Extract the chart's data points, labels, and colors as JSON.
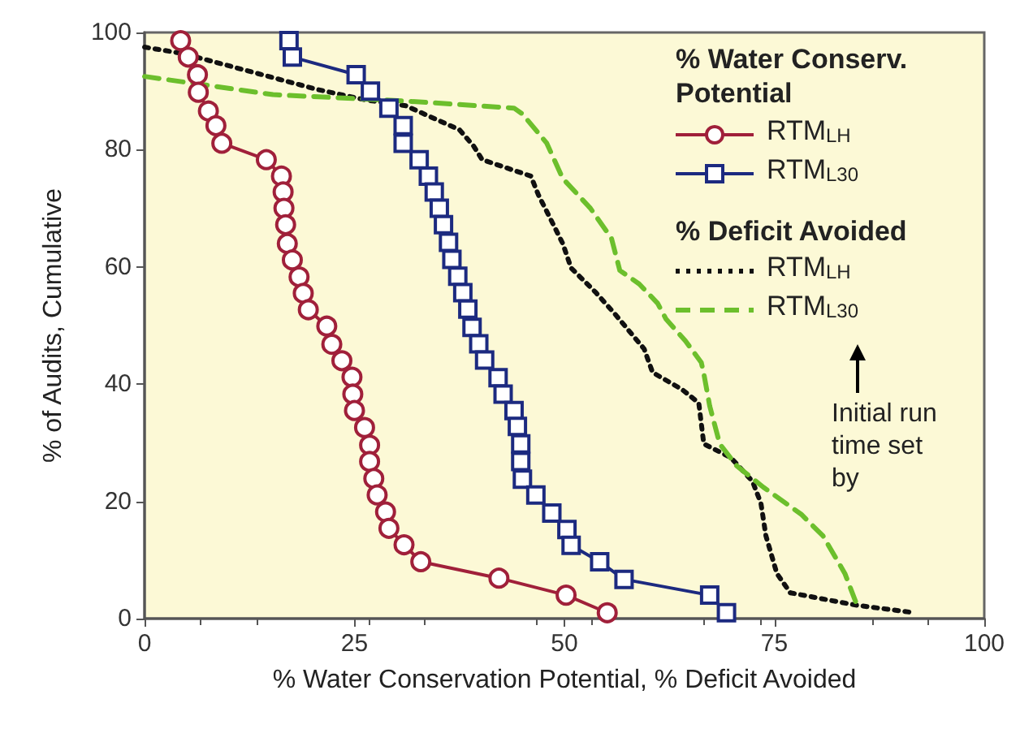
{
  "chart_data": {
    "type": "line",
    "xlabel": "% Water Conservation Potential, % Deficit Avoided",
    "ylabel": "% of Audits, Cumulative",
    "annotations": [
      "% Water Conserv. Potential",
      "% Deficit Avoided",
      "Initial run time set by"
    ],
    "xlim": [
      0,
      100
    ],
    "xticks": [
      0,
      25,
      50,
      75,
      100
    ],
    "ylim": [
      0,
      100
    ],
    "yticks": [
      0,
      20,
      40,
      60,
      80,
      100
    ],
    "grid": false,
    "legend": "top right",
    "series": [
      {
        "name": "RTM$_{LH}$",
        "color": "#a0203a",
        "marker": "circle",
        "line_style": "solid",
        "x": [
          4.3,
          5.2,
          6.3,
          6.4,
          7.6,
          8.5,
          9.2,
          14.5,
          16.3,
          16.5,
          16.6,
          16.8,
          17.0,
          17.6,
          18.4,
          18.9,
          19.5,
          21.7,
          22.3,
          23.5,
          24.7,
          24.8,
          25.0,
          26.2,
          26.8,
          26.8,
          27.3,
          27.7,
          28.7,
          29.1,
          30.9,
          32.9,
          42.2,
          50.2,
          55.1
        ],
        "values": [
          98.6,
          95.8,
          92.8,
          89.8,
          86.6,
          84.1,
          81.1,
          78.3,
          75.5,
          72.8,
          70.0,
          67.2,
          64.0,
          61.2,
          58.3,
          55.5,
          52.7,
          49.9,
          46.8,
          44.0,
          41.2,
          38.3,
          35.5,
          32.6,
          29.6,
          26.8,
          23.9,
          21.1,
          18.2,
          15.4,
          12.6,
          9.7,
          6.9,
          4.0,
          1.0
        ]
      },
      {
        "name": "RTM$_{L30}$",
        "color": "#1c2a80",
        "marker": "square",
        "line_style": "solid",
        "x": [
          17.2,
          17.6,
          25.2,
          26.9,
          29.1,
          30.8,
          30.8,
          32.7,
          33.8,
          34.5,
          35.1,
          35.6,
          36.2,
          36.6,
          37.3,
          37.9,
          38.5,
          39.0,
          39.8,
          40.5,
          42.1,
          42.7,
          44.0,
          44.4,
          44.8,
          44.8,
          45.0,
          46.6,
          48.5,
          50.3,
          50.8,
          54.2,
          57.1,
          67.3,
          69.3
        ],
        "values": [
          98.6,
          95.8,
          92.8,
          90.0,
          87.1,
          84.1,
          81.1,
          78.3,
          75.5,
          72.8,
          70.0,
          67.2,
          64.2,
          61.3,
          58.4,
          55.6,
          52.8,
          49.7,
          46.9,
          44.1,
          41.1,
          38.3,
          35.5,
          32.8,
          29.8,
          26.8,
          23.8,
          21.1,
          18.0,
          15.2,
          12.5,
          9.7,
          6.7,
          4.0,
          1.0
        ]
      },
      {
        "name": "RTM$_{LH}$",
        "color": "#111111",
        "marker": "none",
        "line_style": "dotted",
        "x": [
          0,
          4.6,
          20.5,
          26.3,
          31.1,
          37.5,
          39.2,
          40.2,
          46.0,
          46.9,
          48.2,
          49.8,
          50.8,
          53.7,
          56.0,
          59.5,
          60.5,
          64.0,
          66.0,
          66.6,
          69.8,
          72.4,
          73.4,
          74.0,
          75.3,
          76.9,
          84.7,
          91.7
        ],
        "values": [
          97.5,
          96.4,
          90.3,
          88.5,
          87.5,
          83.4,
          80.6,
          78.3,
          75.5,
          72.3,
          68.6,
          64.0,
          59.8,
          55.7,
          52.0,
          46.0,
          42.0,
          39.1,
          36.8,
          29.8,
          27.5,
          23.4,
          19.7,
          14.1,
          7.7,
          4.4,
          2.3,
          1.0
        ]
      },
      {
        "name": "RTM$_{L30}$",
        "color": "#6cbf2c",
        "marker": "none",
        "line_style": "dashed",
        "x": [
          0,
          15.3,
          31.1,
          44.0,
          45.0,
          47.9,
          49.8,
          53.1,
          55.6,
          56.6,
          58.9,
          61.1,
          62.1,
          64.4,
          66.3,
          66.6,
          67.3,
          68.5,
          70.5,
          73.7,
          78.2,
          80.8,
          83.4,
          85.0
        ],
        "values": [
          92.5,
          89.4,
          88.3,
          87.1,
          86.1,
          81.1,
          75.1,
          70.0,
          64.9,
          59.4,
          57.1,
          53.8,
          51.1,
          47.4,
          43.7,
          41.8,
          36.3,
          29.8,
          26.1,
          22.4,
          17.8,
          14.1,
          7.7,
          1.7
        ]
      }
    ]
  }
}
